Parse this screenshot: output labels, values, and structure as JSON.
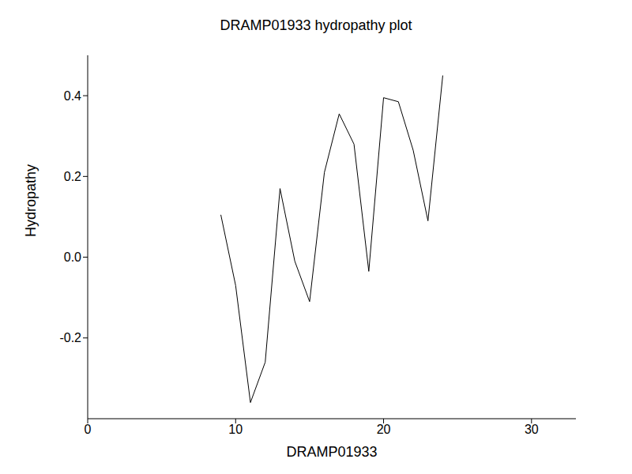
{
  "chart_data": {
    "type": "line",
    "title": "DRAMP01933 hydropathy plot",
    "x_label": "DRAMP01933",
    "y_label": "Hydropathy",
    "x": [
      9,
      10,
      11,
      12,
      13,
      14,
      15,
      16,
      17,
      18,
      19,
      20,
      21,
      22,
      23,
      24
    ],
    "values": [
      0.105,
      -0.07,
      -0.36,
      -0.26,
      0.17,
      -0.01,
      -0.11,
      0.21,
      0.355,
      0.28,
      -0.035,
      0.395,
      0.385,
      0.265,
      0.09,
      0.45
    ],
    "color": "#000000",
    "xlim": [
      0,
      33
    ],
    "xticks": [
      0,
      10,
      20,
      30
    ],
    "ylim": [
      -0.4,
      0.5
    ],
    "yticks": [
      -0.2,
      {
        "value": 0,
        "label": "0.0"
      },
      0.2,
      0.4
    ],
    "grid": false
  }
}
